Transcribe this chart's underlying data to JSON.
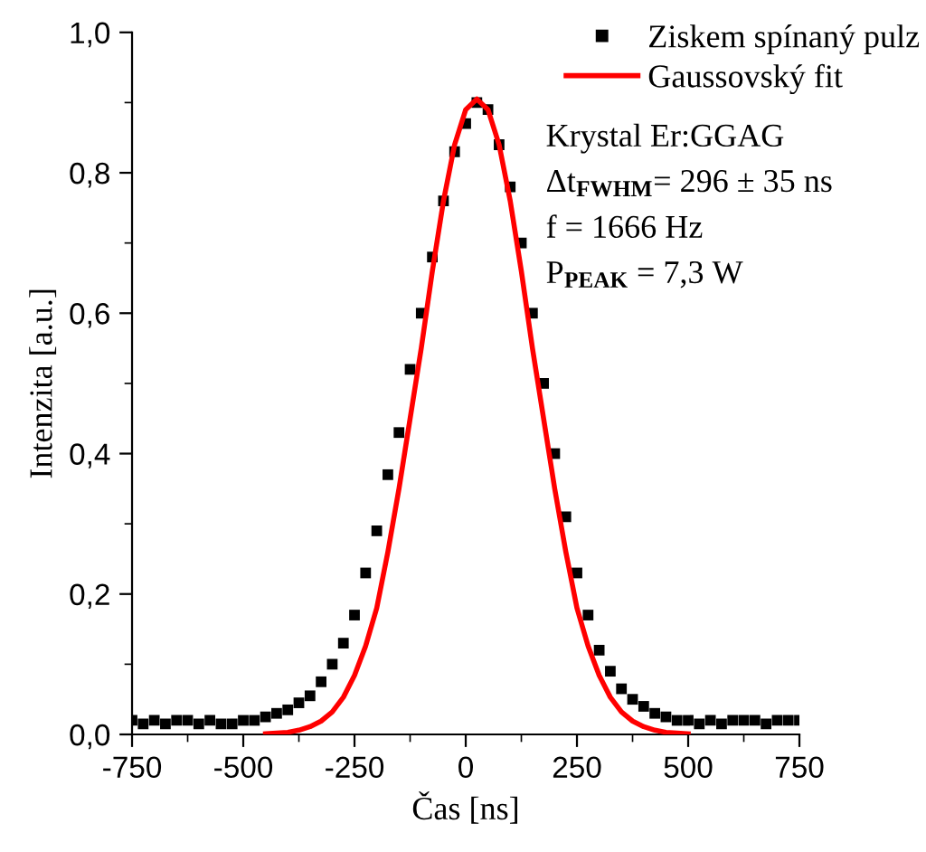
{
  "chart_data": {
    "type": "scatter",
    "xlabel": "Čas [ns]",
    "ylabel": "Intenzita [a.u.]",
    "xlim": [
      -750,
      750
    ],
    "xticks": [
      -750,
      -500,
      -250,
      0,
      250,
      500,
      750
    ],
    "ylim": [
      0,
      1.0
    ],
    "yticks": [
      {
        "value": 0,
        "label": "0,0"
      },
      {
        "value": 0.2,
        "label": "0,2"
      },
      {
        "value": 0.4,
        "label": "0,4"
      },
      {
        "value": 0.6,
        "label": "0,6"
      },
      {
        "value": 0.8,
        "label": "0,8"
      },
      {
        "value": 1.0,
        "label": "1,0"
      }
    ],
    "grid": false,
    "legend": "top right",
    "series": [
      {
        "name": "Ziskem spínaný pulz",
        "marker": "square",
        "color": "#000000",
        "x": [
          -750,
          -725,
          -700,
          -675,
          -650,
          -625,
          -600,
          -575,
          -550,
          -525,
          -500,
          -475,
          -450,
          -425,
          -400,
          -375,
          -350,
          -325,
          -300,
          -275,
          -250,
          -225,
          -200,
          -175,
          -150,
          -125,
          -100,
          -75,
          -50,
          -25,
          0,
          25,
          50,
          75,
          100,
          125,
          150,
          175,
          200,
          225,
          250,
          275,
          300,
          325,
          350,
          375,
          400,
          425,
          450,
          475,
          500,
          525,
          550,
          575,
          600,
          625,
          650,
          675,
          700,
          725,
          750
        ],
        "values": [
          0.02,
          0.015,
          0.02,
          0.015,
          0.02,
          0.02,
          0.015,
          0.02,
          0.015,
          0.015,
          0.02,
          0.02,
          0.025,
          0.03,
          0.035,
          0.045,
          0.055,
          0.075,
          0.1,
          0.13,
          0.17,
          0.23,
          0.29,
          0.37,
          0.43,
          0.52,
          0.6,
          0.68,
          0.76,
          0.83,
          0.87,
          0.9,
          0.89,
          0.84,
          0.78,
          0.7,
          0.6,
          0.5,
          0.4,
          0.31,
          0.23,
          0.17,
          0.12,
          0.09,
          0.065,
          0.05,
          0.04,
          0.03,
          0.025,
          0.02,
          0.02,
          0.015,
          0.02,
          0.015,
          0.02,
          0.02,
          0.02,
          0.015,
          0.02,
          0.02,
          0.02
        ]
      },
      {
        "name": "Gaussovský fit",
        "type": "line",
        "color": "#ff0000",
        "line_style": "solid",
        "marker": "none",
        "x": [
          -450,
          -425,
          -400,
          -375,
          -350,
          -325,
          -300,
          -275,
          -250,
          -225,
          -200,
          -175,
          -150,
          -125,
          -100,
          -75,
          -50,
          -25,
          0,
          25,
          50,
          75,
          100,
          125,
          150,
          175,
          200,
          225,
          250,
          275,
          300,
          325,
          350,
          375,
          400,
          425,
          450,
          475,
          500
        ],
        "values": [
          0.001,
          0.002,
          0.003,
          0.006,
          0.011,
          0.019,
          0.032,
          0.053,
          0.084,
          0.126,
          0.18,
          0.26,
          0.35,
          0.45,
          0.55,
          0.66,
          0.76,
          0.84,
          0.89,
          0.905,
          0.89,
          0.84,
          0.76,
          0.66,
          0.55,
          0.45,
          0.35,
          0.26,
          0.18,
          0.126,
          0.084,
          0.053,
          0.032,
          0.019,
          0.011,
          0.006,
          0.003,
          0.002,
          0.001
        ]
      }
    ],
    "annotations": [
      "Krystal Er:GGAG",
      "Δt$_{FWHM}$= 296 ± 35 ns",
      "f = 1666 Hz",
      "P$_{PEAK}$ = 7,3 W"
    ]
  }
}
